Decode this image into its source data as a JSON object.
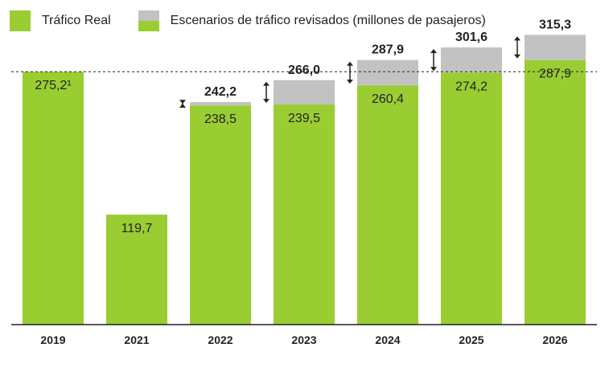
{
  "colors": {
    "green": "#9ACD32",
    "gray": "#C2C2C2",
    "axis": "#222222",
    "text": "#222222"
  },
  "legend": {
    "real": "Tráfico Real",
    "scenarios": "Escenarios de tráfico revisados (millones de pasajeros)"
  },
  "chart_data": {
    "type": "bar",
    "stacked": true,
    "categories": [
      "2019",
      "2021",
      "2022",
      "2023",
      "2024",
      "2025",
      "2026"
    ],
    "series": [
      {
        "name": "Tráfico Real",
        "values": [
          275.2,
          119.7,
          238.5,
          239.5,
          260.4,
          274.2,
          287.9
        ]
      },
      {
        "name": "Escenarios de tráfico revisados (millones de pasajeros)",
        "values": [
          0,
          0,
          3.7,
          26.5,
          27.5,
          27.4,
          27.4
        ]
      }
    ],
    "base_labels": [
      "275,2¹",
      "119,7",
      "238,5",
      "239,5",
      "260,4",
      "274,2",
      "287,9"
    ],
    "total_labels": [
      "",
      "",
      "242,2",
      "266,0",
      "287,9",
      "301,6",
      "315,3"
    ],
    "reference_line": 275.2,
    "ylim": [
      0,
      320
    ],
    "title": "",
    "xlabel": "",
    "ylabel": ""
  }
}
